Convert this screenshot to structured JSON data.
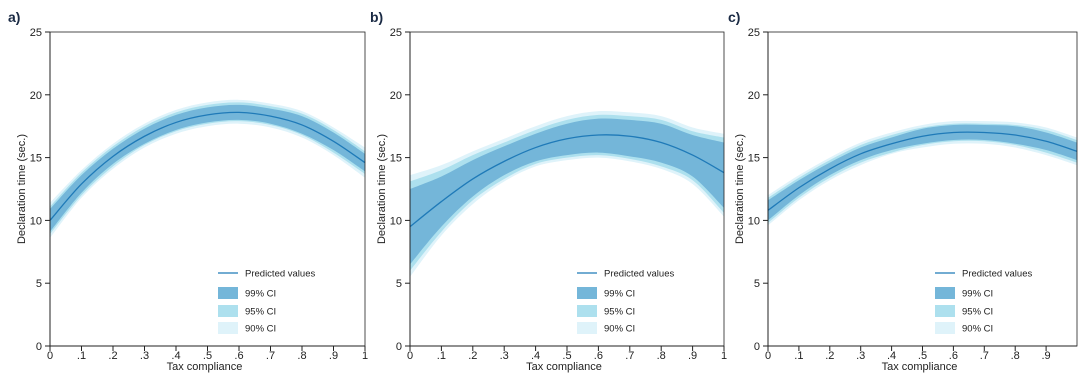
{
  "colors": {
    "ci99": "#74b6d9",
    "ci95": "#ade0ee",
    "ci90": "#dff3fa",
    "line": "#1f7ab8"
  },
  "chart_data": [
    {
      "type": "line",
      "panel_label": "a)",
      "xlabel": "Tax compliance",
      "ylabel": "Declaration time (sec.)",
      "xlim": [
        0,
        1
      ],
      "ylim": [
        0,
        25
      ],
      "xticks": [
        0,
        0.1,
        0.2,
        0.3,
        0.4,
        0.5,
        0.6,
        0.7,
        0.8,
        0.9,
        1
      ],
      "xtick_labels": [
        "0",
        ".1",
        ".2",
        ".3",
        ".4",
        ".5",
        ".6",
        ".7",
        ".8",
        ".9",
        "1"
      ],
      "yticks": [
        0,
        5,
        10,
        15,
        20,
        25
      ],
      "ytick_labels": [
        "0",
        "5",
        "10",
        "15",
        "20",
        "25"
      ],
      "legend_position": "bottom-right",
      "legend": [
        "Predicted values",
        "99% CI",
        "95% CI",
        "90% CI"
      ],
      "x": [
        0,
        0.1,
        0.2,
        0.3,
        0.4,
        0.5,
        0.6,
        0.7,
        0.8,
        0.9,
        1.0
      ],
      "predicted": [
        10.0,
        12.9,
        15.1,
        16.7,
        17.8,
        18.4,
        18.6,
        18.3,
        17.6,
        16.3,
        14.6
      ],
      "ci99_lower": [
        9.1,
        12.2,
        14.5,
        16.1,
        17.2,
        17.8,
        18.0,
        17.7,
        16.9,
        15.6,
        13.9
      ],
      "ci99_upper": [
        10.9,
        13.6,
        15.7,
        17.3,
        18.4,
        19.0,
        19.2,
        18.9,
        18.3,
        17.0,
        15.3
      ],
      "ci95_lower": [
        8.9,
        12.0,
        14.3,
        16.0,
        17.1,
        17.7,
        17.9,
        17.6,
        16.8,
        15.4,
        13.7
      ],
      "ci95_upper": [
        11.1,
        13.8,
        15.9,
        17.5,
        18.6,
        19.2,
        19.4,
        19.1,
        18.5,
        17.2,
        15.5
      ],
      "ci90_lower": [
        8.6,
        11.8,
        14.1,
        15.8,
        16.9,
        17.5,
        17.7,
        17.4,
        16.6,
        15.2,
        13.4
      ],
      "ci90_upper": [
        11.4,
        14.0,
        16.1,
        17.7,
        18.8,
        19.4,
        19.6,
        19.3,
        18.7,
        17.4,
        15.8
      ]
    },
    {
      "type": "line",
      "panel_label": "b)",
      "xlabel": "Tax compliance",
      "ylabel": "Declaration time (sec.)",
      "xlim": [
        0,
        1
      ],
      "ylim": [
        0,
        25
      ],
      "xticks": [
        0,
        0.1,
        0.2,
        0.3,
        0.4,
        0.5,
        0.6,
        0.7,
        0.8,
        0.9,
        1
      ],
      "xtick_labels": [
        "0",
        ".1",
        ".2",
        ".3",
        ".4",
        ".5",
        ".6",
        ".7",
        ".8",
        ".9",
        "1"
      ],
      "yticks": [
        0,
        5,
        10,
        15,
        20,
        25
      ],
      "ytick_labels": [
        "0",
        "5",
        "10",
        "15",
        "20",
        "25"
      ],
      "legend_position": "bottom-right",
      "legend": [
        "Predicted values",
        "99% CI",
        "95% CI",
        "90% CI"
      ],
      "x": [
        0,
        0.1,
        0.2,
        0.3,
        0.4,
        0.5,
        0.6,
        0.7,
        0.8,
        0.9,
        1.0
      ],
      "predicted": [
        9.5,
        11.5,
        13.3,
        14.7,
        15.8,
        16.5,
        16.8,
        16.7,
        16.2,
        15.2,
        13.8
      ],
      "ci99_lower": [
        6.5,
        9.5,
        11.9,
        13.6,
        14.7,
        15.2,
        15.4,
        15.1,
        14.6,
        13.5,
        11.0
      ],
      "ci99_upper": [
        12.5,
        13.5,
        14.8,
        15.9,
        16.9,
        17.7,
        18.1,
        18.0,
        17.7,
        16.8,
        16.2
      ],
      "ci95_lower": [
        6.0,
        9.1,
        11.6,
        13.3,
        14.5,
        15.0,
        15.2,
        14.9,
        14.3,
        13.2,
        10.6
      ],
      "ci95_upper": [
        13.1,
        14.0,
        15.2,
        16.2,
        17.2,
        18.0,
        18.4,
        18.3,
        18.0,
        17.1,
        16.6
      ],
      "ci90_lower": [
        5.5,
        8.8,
        11.3,
        13.1,
        14.3,
        14.8,
        15.0,
        14.7,
        14.1,
        12.9,
        10.3
      ],
      "ci90_upper": [
        13.6,
        14.4,
        15.5,
        16.5,
        17.5,
        18.3,
        18.7,
        18.6,
        18.3,
        17.4,
        16.9
      ]
    },
    {
      "type": "line",
      "panel_label": "c)",
      "xlabel": "Tax compliance",
      "ylabel": "Declaration time (sec.)",
      "xlim": [
        0,
        1
      ],
      "ylim": [
        0,
        25
      ],
      "xticks": [
        0,
        0.1,
        0.2,
        0.3,
        0.4,
        0.5,
        0.6,
        0.7,
        0.8,
        0.9
      ],
      "xtick_labels": [
        "0",
        ".1",
        ".2",
        ".3",
        ".4",
        ".5",
        ".6",
        ".7",
        ".8",
        ".9"
      ],
      "yticks": [
        0,
        5,
        10,
        15,
        20,
        25
      ],
      "ytick_labels": [
        "0",
        "5",
        "10",
        "15",
        "20",
        "25"
      ],
      "legend_position": "bottom-right",
      "legend": [
        "Predicted values",
        "99% CI",
        "95% CI",
        "90% CI"
      ],
      "x": [
        0,
        0.1,
        0.2,
        0.3,
        0.4,
        0.5,
        0.6,
        0.7,
        0.8,
        0.9,
        1.0
      ],
      "predicted": [
        10.8,
        12.6,
        14.1,
        15.3,
        16.1,
        16.7,
        17.0,
        17.0,
        16.8,
        16.3,
        15.5
      ],
      "ci99_lower": [
        10.0,
        12.0,
        13.6,
        14.8,
        15.6,
        16.1,
        16.4,
        16.4,
        16.1,
        15.6,
        14.8
      ],
      "ci99_upper": [
        11.6,
        13.2,
        14.6,
        15.8,
        16.6,
        17.3,
        17.6,
        17.6,
        17.5,
        17.0,
        16.2
      ],
      "ci95_lower": [
        9.8,
        11.8,
        13.4,
        14.6,
        15.4,
        16.0,
        16.3,
        16.3,
        16.0,
        15.4,
        14.6
      ],
      "ci95_upper": [
        11.8,
        13.4,
        14.8,
        16.0,
        16.8,
        17.4,
        17.7,
        17.7,
        17.6,
        17.2,
        16.4
      ],
      "ci90_lower": [
        9.6,
        11.6,
        13.2,
        14.4,
        15.3,
        15.8,
        16.1,
        16.1,
        15.8,
        15.2,
        14.4
      ],
      "ci90_upper": [
        12.0,
        13.6,
        15.0,
        16.2,
        17.0,
        17.6,
        17.9,
        17.9,
        17.8,
        17.4,
        16.6
      ]
    }
  ]
}
